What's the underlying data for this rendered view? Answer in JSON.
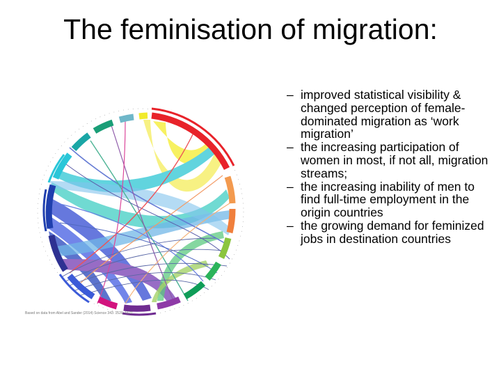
{
  "slide": {
    "title": "The feminisation of migration:"
  },
  "bullets": [
    {
      "marker": "–",
      "text": "improved statistical visibility & changed perception of female-dominated migration as ‘work migration’"
    },
    {
      "marker": "–",
      "text": "the increasing participation of women in most, if not all, migration streams;"
    },
    {
      "marker": "–",
      "text": "the increasing inability of men to find full-time employment in the origin countries"
    },
    {
      "marker": "–",
      "text": "the growing demand for feminized jobs in destination countries"
    }
  ],
  "figure": {
    "credit": "Based on data from Abel and Sander (2014) Science 343: 1520–1522",
    "colors": [
      "#e8232a",
      "#f39a4f",
      "#f07f3c",
      "#8bc53f",
      "#2bb35b",
      "#0f9d58",
      "#6f2c91",
      "#8e3aa7",
      "#d2137e",
      "#2e3192",
      "#3c5bd8",
      "#1f3fae",
      "#29c6d8",
      "#1aa6a6",
      "#1a9e77",
      "#6fb7c9",
      "#f1eb2c"
    ]
  }
}
